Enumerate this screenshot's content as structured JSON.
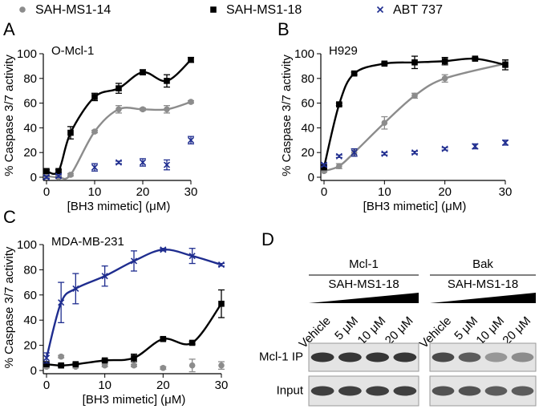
{
  "chart_data": [
    {
      "type": "scatter",
      "panel": "A",
      "title": "O-Mcl-1",
      "xlabel": "[BH3 mimetic] (μM)",
      "ylabel": "% Caspase 3/7 activity",
      "x": [
        0,
        2.5,
        5,
        10,
        15,
        20,
        25,
        30
      ],
      "xlim": [
        0,
        30
      ],
      "xticks": [
        0,
        10,
        20,
        30
      ],
      "ylim": [
        0,
        100
      ],
      "yticks": [
        0,
        20,
        40,
        60,
        80,
        100
      ],
      "series": [
        {
          "name": "SAH-MS1-14",
          "color": "#8c8c8c",
          "marker": "circle",
          "fit": true,
          "values": [
            1,
            0,
            2,
            37,
            55,
            55,
            55,
            61
          ],
          "errors": [
            1,
            1,
            1,
            1,
            3,
            1,
            3,
            1
          ]
        },
        {
          "name": "SAH-MS1-18",
          "color": "#000000",
          "marker": "square",
          "fit": true,
          "values": [
            5,
            5,
            36,
            65,
            72,
            85,
            78,
            95
          ],
          "errors": [
            1,
            1,
            5,
            3,
            4,
            2,
            5,
            2
          ]
        },
        {
          "name": "ABT 737",
          "color": "#1f2d8f",
          "marker": "x",
          "fit": false,
          "values": [
            0,
            1,
            null,
            8,
            12,
            12,
            10,
            30
          ],
          "errors": [
            1,
            1,
            null,
            3,
            1,
            3,
            4,
            3
          ]
        }
      ]
    },
    {
      "type": "scatter",
      "panel": "B",
      "title": "H929",
      "xlabel": "[BH3 mimetic] (μM)",
      "ylabel": "% Caspase 3/7 activity",
      "x": [
        0,
        2.5,
        5,
        10,
        15,
        20,
        25,
        30
      ],
      "xlim": [
        0,
        30
      ],
      "xticks": [
        0,
        10,
        20,
        30
      ],
      "ylim": [
        0,
        100
      ],
      "yticks": [
        0,
        20,
        40,
        60,
        80,
        100
      ],
      "series": [
        {
          "name": "SAH-MS1-14",
          "color": "#8c8c8c",
          "marker": "circle",
          "fit": true,
          "values": [
            5,
            9,
            20,
            44,
            66,
            80,
            null,
            92
          ],
          "errors": [
            1,
            2,
            3,
            5,
            2,
            3,
            null,
            2
          ]
        },
        {
          "name": "SAH-MS1-18",
          "color": "#000000",
          "marker": "square",
          "fit": true,
          "values": [
            8,
            59,
            84,
            92,
            93,
            94,
            96,
            91
          ],
          "errors": [
            1,
            1,
            1,
            1,
            5,
            3,
            1,
            4
          ]
        },
        {
          "name": "ABT 737",
          "color": "#1f2d8f",
          "marker": "x",
          "fit": false,
          "values": [
            10,
            17,
            20,
            19,
            20,
            23,
            25,
            28
          ],
          "errors": [
            1,
            1,
            3,
            1,
            1,
            1,
            2,
            2
          ]
        }
      ]
    },
    {
      "type": "scatter",
      "panel": "C",
      "title": "MDA-MB-231",
      "xlabel": "[BH3 mimetic] (μM)",
      "ylabel": "% Caspase 3/7 activity",
      "x": [
        0,
        2.5,
        5,
        10,
        15,
        20,
        25,
        30
      ],
      "xlim": [
        0,
        30
      ],
      "xticks": [
        0,
        10,
        20,
        30
      ],
      "ylim": [
        0,
        100
      ],
      "yticks": [
        0,
        20,
        40,
        60,
        80,
        100
      ],
      "series": [
        {
          "name": "SAH-MS1-14",
          "color": "#8c8c8c",
          "marker": "circle",
          "fit": false,
          "values": [
            3,
            11,
            3,
            4,
            4,
            2,
            4,
            4
          ],
          "errors": [
            1,
            1,
            1,
            1,
            1,
            1,
            5,
            3
          ]
        },
        {
          "name": "SAH-MS1-18",
          "color": "#000000",
          "marker": "square",
          "fit": true,
          "values": [
            5,
            4,
            5,
            8,
            10,
            25,
            22,
            53
          ],
          "errors": [
            1,
            1,
            1,
            1,
            3,
            1,
            1,
            11
          ]
        },
        {
          "name": "ABT 737",
          "color": "#1f2d8f",
          "marker": "x",
          "fit": true,
          "values": [
            10,
            54,
            65,
            75,
            87,
            96,
            91,
            84
          ],
          "errors": [
            4,
            16,
            12,
            8,
            8,
            1,
            6,
            1
          ]
        }
      ]
    }
  ],
  "blot": {
    "panel": "D",
    "groups": [
      {
        "label": "Mcl-1",
        "treatment": "SAH-MS1-18"
      },
      {
        "label": "Bak",
        "treatment": "SAH-MS1-18"
      }
    ],
    "lanes": [
      "Vehicle",
      "5 μM",
      "10 μM",
      "20 μM"
    ],
    "rows": [
      "Mcl-1 IP",
      "Input"
    ]
  }
}
